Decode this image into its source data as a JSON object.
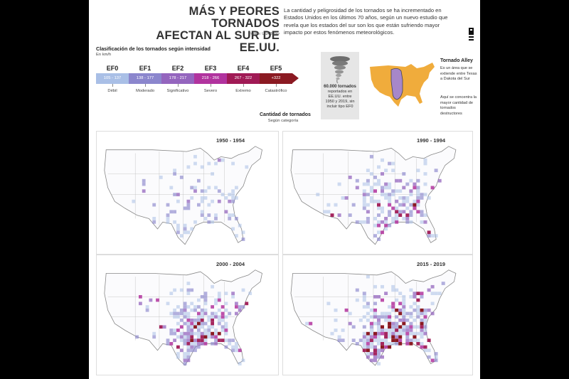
{
  "header": {
    "title_line1": "MÁS Y PEORES TORNADOS",
    "title_line2": "AFECTAN AL SUR DE EE.UU.",
    "source": "Fuente: USA Today",
    "intro": "La cantidad y peligrosidad de los tornados se ha incrementado en Estados Unidos en los últimos 70 años, según un nuevo estudio que revela que los estados del sur son los que están sufriendo mayor impacto por estos fenómenos meteorológicos."
  },
  "classification": {
    "title": "Clasificación de los tornados según intensidad",
    "unit": "En km/h",
    "categories": [
      {
        "name": "EF0",
        "range": "105 - 137",
        "label": "Débil",
        "color": "#a9bfe6"
      },
      {
        "name": "EF1",
        "range": "138 - 177",
        "label": "Moderado",
        "color": "#8b86cd"
      },
      {
        "name": "EF2",
        "range": "178 - 217",
        "label": "Significativo",
        "color": "#9465be"
      },
      {
        "name": "EF3",
        "range": "218 - 266",
        "label": "Severo",
        "color": "#b1339e"
      },
      {
        "name": "EF4",
        "range": "267 - 322",
        "label": "Extremo",
        "color": "#a01a55"
      },
      {
        "name": "EF5",
        "range": "+322",
        "label": "Catastrófico",
        "color": "#8b1a22"
      }
    ]
  },
  "quantity": {
    "title": "Cantidad de tornados",
    "subtitle": "Según categoría"
  },
  "stat": {
    "headline": "60.000 tornados",
    "line1": "reportados en",
    "line2": "EE.UU. entre",
    "line3": "1950 y 2019, sin",
    "line4": "incluir tipo EF0"
  },
  "tornado_alley": {
    "title": "Tornado Alley",
    "description": "Es un área que se extiende entre Texas a Dakota del Sur",
    "note": "Aquí se concentra la mayor cantidad de tornados destructores",
    "land_color": "#f0ac3c",
    "alley_color": "#a787c9"
  },
  "maps": [
    {
      "period": "1950 - 1954",
      "intensity": 0.35
    },
    {
      "period": "1990 - 1994",
      "intensity": 0.6
    },
    {
      "period": "2000 - 2004",
      "intensity": 0.75
    },
    {
      "period": "2015 - 2019",
      "intensity": 0.95
    }
  ]
}
